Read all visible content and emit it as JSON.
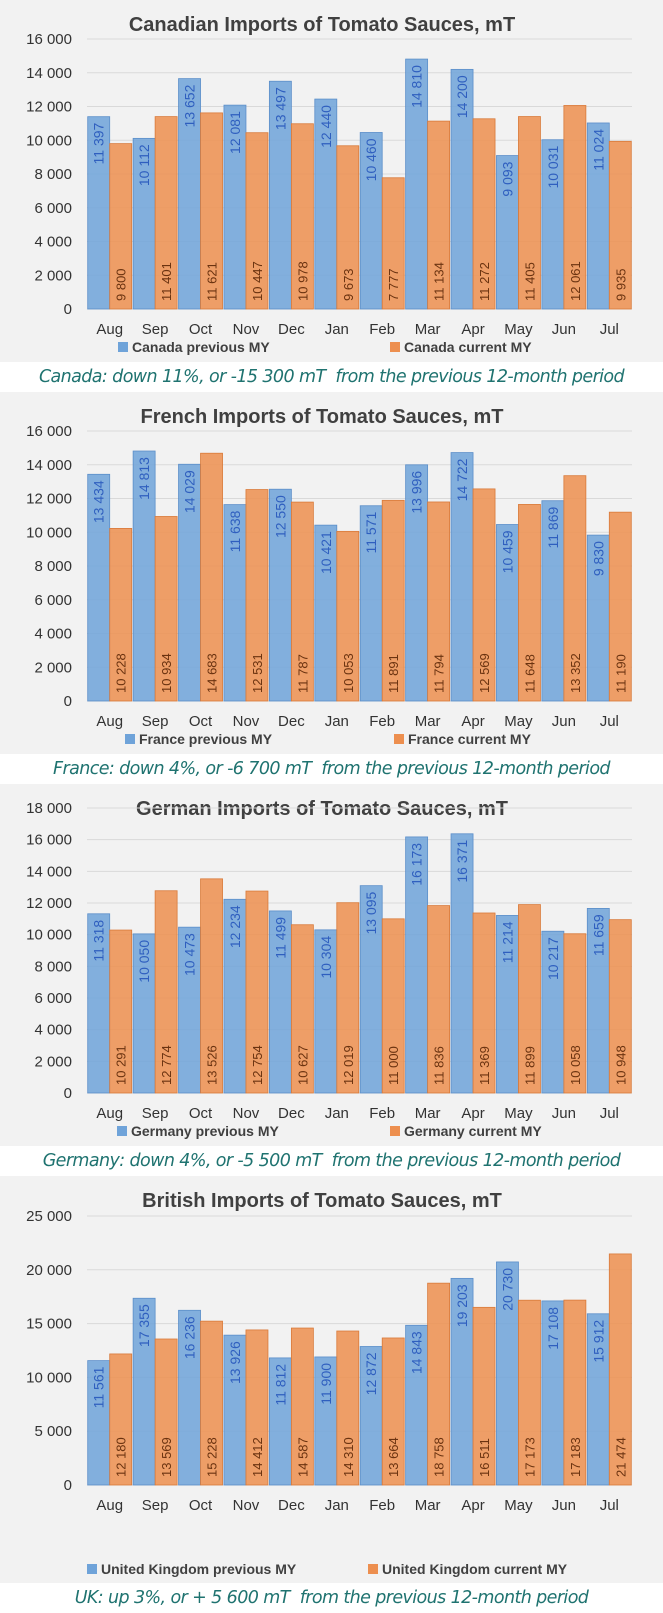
{
  "colors": {
    "previous": "#6fa3d9",
    "current": "#ed8f4f",
    "gridline": "#d9d9d9",
    "caption_text": "#1f7370"
  },
  "chart_data": [
    {
      "type": "bar",
      "title": "Canadian Imports of Tomato Sauces, mT",
      "categories": [
        "Aug",
        "Sep",
        "Oct",
        "Nov",
        "Dec",
        "Jan",
        "Feb",
        "Mar",
        "Apr",
        "May",
        "Jun",
        "Jul"
      ],
      "series": [
        {
          "name": "Canada previous MY",
          "values": [
            11397,
            10112,
            13652,
            12081,
            13497,
            12440,
            10460,
            14810,
            14200,
            9093,
            10031,
            11024
          ]
        },
        {
          "name": "Canada current MY",
          "values": [
            9800,
            11401,
            11621,
            10447,
            10978,
            9673,
            7777,
            11134,
            11272,
            11405,
            12061,
            9935
          ]
        }
      ],
      "labels_prev": [
        "11 397",
        "10 112",
        "13 652",
        "12 081",
        "13 497",
        "12 440",
        "10 460",
        "14 810",
        "14 200",
        "9 093",
        "10 031",
        "11 024"
      ],
      "labels_cur": [
        "9 800",
        "11 401",
        "11 621",
        "10 447",
        "10 978",
        "9 673",
        "7 777",
        "11 134",
        "11 272",
        "11 405",
        "12 061",
        "9 935"
      ],
      "ylim": [
        0,
        16000
      ],
      "yticks": [
        0,
        2000,
        4000,
        6000,
        8000,
        10000,
        12000,
        14000,
        16000
      ],
      "ytick_labels": [
        "0",
        "2 000",
        "4 000",
        "6 000",
        "8 000",
        "10 000",
        "12 000",
        "14 000",
        "16 000"
      ],
      "xlabel": "",
      "ylabel": "",
      "grid": true,
      "legend_position": "bottom",
      "caption": "Canada: down 11%, or -15 300 mT  from the previous 12-month period"
    },
    {
      "type": "bar",
      "title": "French Imports of Tomato Sauces, mT",
      "categories": [
        "Aug",
        "Sep",
        "Oct",
        "Nov",
        "Dec",
        "Jan",
        "Feb",
        "Mar",
        "Apr",
        "May",
        "Jun",
        "Jul"
      ],
      "series": [
        {
          "name": "France previous MY",
          "values": [
            13434,
            14813,
            14029,
            11638,
            12550,
            10421,
            11571,
            13996,
            14722,
            10459,
            11869,
            9830
          ]
        },
        {
          "name": "France current MY",
          "values": [
            10228,
            10934,
            14683,
            12531,
            11787,
            10053,
            11891,
            11794,
            12569,
            11648,
            13352,
            11190
          ]
        }
      ],
      "labels_prev": [
        "13 434",
        "14 813",
        "14 029",
        "11 638",
        "12 550",
        "10 421",
        "11 571",
        "13 996",
        "14 722",
        "10 459",
        "11 869",
        "9 830"
      ],
      "labels_cur": [
        "10 228",
        "10 934",
        "14 683",
        "12 531",
        "11 787",
        "10 053",
        "11 891",
        "11 794",
        "12 569",
        "11 648",
        "13 352",
        "11 190"
      ],
      "ylim": [
        0,
        16000
      ],
      "yticks": [
        0,
        2000,
        4000,
        6000,
        8000,
        10000,
        12000,
        14000,
        16000
      ],
      "ytick_labels": [
        "0",
        "2 000",
        "4 000",
        "6 000",
        "8 000",
        "10 000",
        "12 000",
        "14 000",
        "16 000"
      ],
      "xlabel": "",
      "ylabel": "",
      "grid": true,
      "legend_position": "bottom",
      "caption": "France: down 4%, or -6 700 mT  from the previous 12-month period"
    },
    {
      "type": "bar",
      "title": "German Imports of Tomato Sauces, mT",
      "categories": [
        "Aug",
        "Sep",
        "Oct",
        "Nov",
        "Dec",
        "Jan",
        "Feb",
        "Mar",
        "Apr",
        "May",
        "Jun",
        "Jul"
      ],
      "series": [
        {
          "name": "Germany previous MY",
          "values": [
            11318,
            10050,
            10473,
            12234,
            11499,
            10304,
            13095,
            16173,
            16371,
            11214,
            10217,
            11659
          ]
        },
        {
          "name": "Germany current MY",
          "values": [
            10291,
            12774,
            13526,
            12754,
            10627,
            12019,
            11000,
            11836,
            11369,
            11899,
            10058,
            10948
          ]
        }
      ],
      "labels_prev": [
        "11 318",
        "10 050",
        "10 473",
        "12 234",
        "11 499",
        "10 304",
        "13 095",
        "16 173",
        "16 371",
        "11 214",
        "10 217",
        "11 659"
      ],
      "labels_cur": [
        "10 291",
        "12 774",
        "13 526",
        "12 754",
        "10 627",
        "12 019",
        "11 000",
        "11 836",
        "11 369",
        "11 899",
        "10 058",
        "10 948"
      ],
      "ylim": [
        0,
        18000
      ],
      "yticks": [
        0,
        2000,
        4000,
        6000,
        8000,
        10000,
        12000,
        14000,
        16000,
        18000
      ],
      "ytick_labels": [
        "0",
        "2 000",
        "4 000",
        "6 000",
        "8 000",
        "10 000",
        "12 000",
        "14 000",
        "16 000",
        "18 000"
      ],
      "xlabel": "",
      "ylabel": "",
      "grid": true,
      "legend_position": "bottom",
      "caption": "Germany: down 4%, or -5 500 mT  from the previous 12-month period"
    },
    {
      "type": "bar",
      "title": "British Imports of Tomato Sauces, mT",
      "categories": [
        "Aug",
        "Sep",
        "Oct",
        "Nov",
        "Dec",
        "Jan",
        "Feb",
        "Mar",
        "Apr",
        "May",
        "Jun",
        "Jul"
      ],
      "series": [
        {
          "name": "United Kingdom previous MY",
          "values": [
            11561,
            17355,
            16236,
            13926,
            11812,
            11900,
            12872,
            14843,
            19203,
            20730,
            17108,
            15912
          ]
        },
        {
          "name": "United Kingdom current MY",
          "values": [
            12180,
            13569,
            15228,
            14412,
            14587,
            14310,
            13664,
            18758,
            16511,
            17173,
            17183,
            21474
          ]
        }
      ],
      "labels_prev": [
        "11 561",
        "17 355",
        "16 236",
        "13 926",
        "11 812",
        "11 900",
        "12 872",
        "14 843",
        "19 203",
        "20 730",
        "17 108",
        "15 912"
      ],
      "labels_cur": [
        "12 180",
        "13 569",
        "15 228",
        "14 412",
        "14 587",
        "14 310",
        "13 664",
        "18 758",
        "16 511",
        "17 173",
        "17 183",
        "21 474"
      ],
      "ylim": [
        0,
        25000
      ],
      "yticks": [
        0,
        5000,
        10000,
        15000,
        20000,
        25000
      ],
      "ytick_labels": [
        "0",
        "5 000",
        "10 000",
        "15 000",
        "20 000",
        "25 000"
      ],
      "xlabel": "",
      "ylabel": "",
      "grid": true,
      "legend_position": "bottom",
      "caption": "UK: up 3%, or + 5 600 mT  from the previous 12-month period"
    }
  ]
}
